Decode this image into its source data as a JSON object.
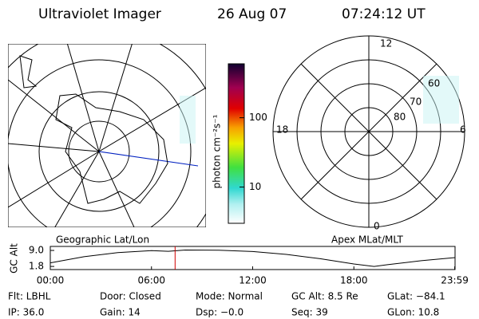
{
  "header": {
    "title": "Ultraviolet Imager",
    "date": "26 Aug 07",
    "time": "07:24:12 UT"
  },
  "left_map": {
    "label": "Geographic Lat/Lon"
  },
  "colorbar": {
    "label": "photon cm⁻²s⁻¹",
    "log": true,
    "range": [
      3,
      600
    ],
    "ticks": [
      10,
      100
    ]
  },
  "right_map": {
    "label": "Apex MLat/MLT",
    "mlt_labels": [
      "12",
      "18",
      "6",
      "0"
    ],
    "lat_labels": [
      "60",
      "70",
      "80"
    ]
  },
  "chart_data": {
    "type": "line",
    "ylabel": "GC Alt",
    "x": [
      0,
      2,
      4,
      6,
      7,
      8,
      10,
      12,
      14,
      16,
      18,
      19.2,
      20,
      22,
      24
    ],
    "series": [
      {
        "color": "#000000",
        "values": [
          3.4,
          6.2,
          8.0,
          8.9,
          8.6,
          9.2,
          9.1,
          8.5,
          7.2,
          5.3,
          2.9,
          1.8,
          2.6,
          4.4,
          5.8
        ]
      }
    ],
    "marker": {
      "x": 7.4,
      "color": "#d00000"
    },
    "xlim": [
      0,
      24
    ],
    "ylim": [
      0.4,
      10.8
    ],
    "xticks": [
      {
        "value": 0,
        "label": "00:00"
      },
      {
        "value": 6,
        "label": "06:00"
      },
      {
        "value": 12,
        "label": "12:00"
      },
      {
        "value": 18,
        "label": "18:00"
      },
      {
        "value": 23.98,
        "label": "23:59"
      }
    ],
    "yticks": [
      {
        "value": 9,
        "label": "9.0"
      },
      1.8
    ]
  },
  "info": [
    [
      "Flt: LBHL",
      "Door: Closed",
      "Mode: Normal",
      "GC Alt: 8.5 Re",
      "GLat: −84.1"
    ],
    [
      "IP: 36.0",
      "Gain: 14",
      "Dsp: −0.0",
      "Seq: 39",
      "GLon: 10.8"
    ]
  ]
}
